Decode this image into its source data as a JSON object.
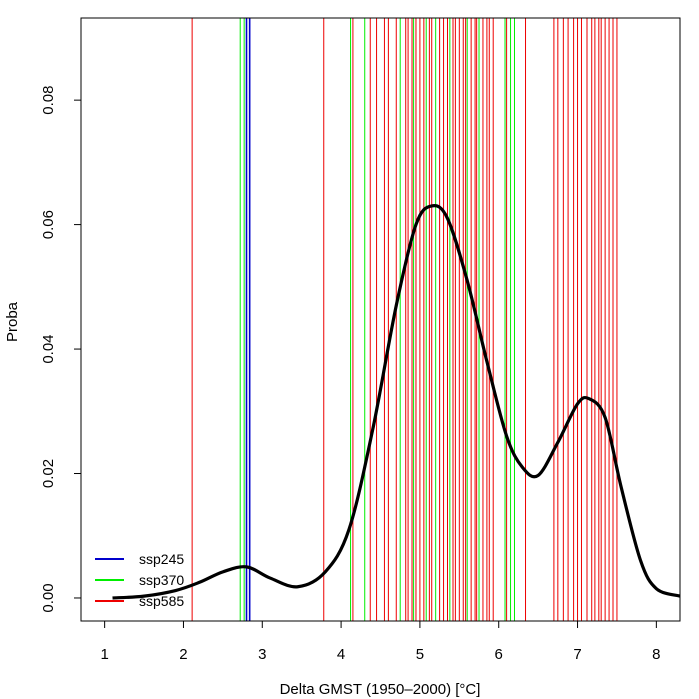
{
  "chart_data": {
    "type": "line",
    "xlabel": "Delta GMST (1950–2000) [°C]",
    "ylabel": "Proba",
    "xlim": [
      0.7,
      8.3
    ],
    "ylim": [
      -0.0037,
      0.0932
    ],
    "x_ticks": [
      1,
      2,
      3,
      4,
      5,
      6,
      7,
      8
    ],
    "x_tick_labels": [
      "1",
      "2",
      "3",
      "4",
      "5",
      "6",
      "7",
      "8"
    ],
    "y_ticks": [
      0.0,
      0.02,
      0.04,
      0.06,
      0.08
    ],
    "y_tick_labels": [
      "0.00",
      "0.02",
      "0.04",
      "0.06",
      "0.08"
    ],
    "grid": false,
    "legend": {
      "position": "bottom-left",
      "entries": [
        {
          "label": "ssp245",
          "color": "#0000cc"
        },
        {
          "label": "ssp370",
          "color": "#00ee00"
        },
        {
          "label": "ssp585",
          "color": "#ee0000"
        }
      ]
    },
    "density_curve": {
      "color": "#000000",
      "x": [
        1.1,
        1.5,
        1.9,
        2.2,
        2.5,
        2.8,
        3.1,
        3.45,
        3.8,
        4.1,
        4.4,
        4.7,
        4.95,
        5.15,
        5.35,
        5.6,
        5.85,
        6.1,
        6.3,
        6.5,
        6.75,
        7.0,
        7.15,
        7.35,
        7.55,
        7.8,
        8.0,
        8.3
      ],
      "y": [
        0.0,
        0.0003,
        0.0012,
        0.0025,
        0.0042,
        0.005,
        0.0032,
        0.0018,
        0.0042,
        0.011,
        0.027,
        0.047,
        0.06,
        0.063,
        0.061,
        0.051,
        0.038,
        0.026,
        0.021,
        0.0197,
        0.025,
        0.0312,
        0.032,
        0.029,
        0.018,
        0.006,
        0.0015,
        0.0003
      ]
    },
    "series": [
      {
        "name": "ssp245",
        "color": "#0000cc",
        "x": [
          2.8,
          2.84
        ]
      },
      {
        "name": "ssp370",
        "color": "#00ee00",
        "x": [
          2.72,
          2.77,
          4.12,
          4.3,
          4.75,
          4.92,
          5.08,
          5.2,
          5.38,
          5.6,
          5.75,
          6.08,
          6.15,
          6.2
        ]
      },
      {
        "name": "ssp585",
        "color": "#ee0000",
        "x": [
          2.11,
          3.78,
          4.15,
          4.37,
          4.45,
          4.55,
          4.6,
          4.7,
          4.82,
          4.85,
          4.9,
          4.95,
          5.0,
          5.05,
          5.12,
          5.15,
          5.25,
          5.3,
          5.35,
          5.42,
          5.45,
          5.5,
          5.55,
          5.58,
          5.65,
          5.7,
          5.72,
          5.8,
          5.85,
          5.88,
          5.93,
          6.1,
          6.34,
          6.7,
          6.75,
          6.82,
          6.88,
          6.95,
          7.0,
          7.05,
          7.12,
          7.18,
          7.22,
          7.27,
          7.3,
          7.35,
          7.4,
          7.45,
          7.5
        ]
      }
    ]
  }
}
